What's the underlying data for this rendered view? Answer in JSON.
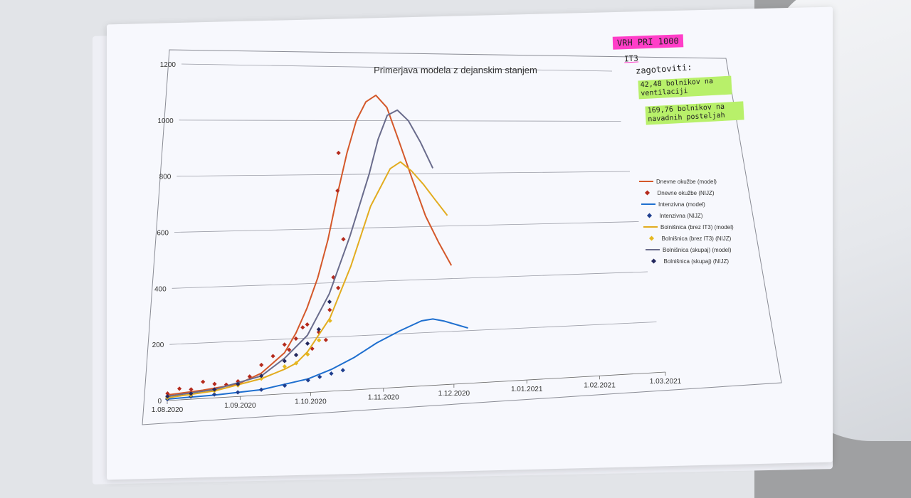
{
  "chart_data": {
    "type": "line",
    "title": "Primerjava modela z dejanskim stanjem",
    "xlabel": "",
    "ylabel": "",
    "ylim": [
      0,
      1200
    ],
    "y_ticks": [
      "0",
      "200",
      "400",
      "600",
      "800",
      "1000",
      "1200"
    ],
    "x_tick_labels": [
      "1.08.2020",
      "1.09.2020",
      "1.10.2020",
      "1.11.2020",
      "1.12.2020",
      "1.01.2021",
      "1.02.2021",
      "1.03.2021"
    ],
    "x_tick_days": [
      0,
      31,
      61,
      92,
      122,
      153,
      184,
      212
    ],
    "grid": true,
    "legend_position": "right",
    "series": [
      {
        "name": "Dnevne okužbe (model)",
        "kind": "line",
        "color": "#d4582a",
        "x_days": [
          0,
          15,
          30,
          40,
          50,
          55,
          60,
          65,
          70,
          75,
          80,
          85,
          90,
          95,
          100,
          105,
          110,
          115,
          120,
          125
        ],
        "y": [
          20,
          30,
          45,
          80,
          150,
          220,
          310,
          420,
          560,
          730,
          880,
          1000,
          1070,
          1095,
          1050,
          920,
          780,
          640,
          540,
          450
        ]
      },
      {
        "name": "Dnevne okužbe (NIJZ)",
        "kind": "scatter",
        "color": "#b52a1c",
        "x_days": [
          0,
          5,
          10,
          15,
          20,
          25,
          30,
          35,
          40,
          45,
          50,
          52,
          55,
          58,
          60,
          62,
          65,
          68,
          70,
          72,
          74,
          75,
          76,
          77
        ],
        "y": [
          25,
          40,
          35,
          60,
          50,
          45,
          55,
          70,
          110,
          140,
          180,
          160,
          200,
          240,
          250,
          160,
          220,
          190,
          300,
          420,
          380,
          740,
          880,
          560
        ]
      },
      {
        "name": "Intenzivna (model)",
        "kind": "line",
        "color": "#1e6fcf",
        "x_days": [
          0,
          20,
          40,
          60,
          70,
          80,
          90,
          100,
          110,
          115,
          120,
          125,
          130
        ],
        "y": [
          5,
          10,
          20,
          50,
          80,
          120,
          170,
          210,
          245,
          250,
          240,
          225,
          210
        ]
      },
      {
        "name": "Intenzivna (NIJZ)",
        "kind": "scatter",
        "color": "#1f3f8f",
        "x_days": [
          0,
          10,
          20,
          30,
          40,
          50,
          60,
          65,
          70,
          75
        ],
        "y": [
          5,
          10,
          12,
          15,
          20,
          30,
          45,
          55,
          65,
          75
        ]
      },
      {
        "name": "Bolnišnica (brez IT3) (model)",
        "kind": "line",
        "color": "#e2ac1f",
        "x_days": [
          0,
          20,
          40,
          50,
          55,
          60,
          70,
          80,
          90,
          100,
          105,
          110,
          115,
          120,
          125
        ],
        "y": [
          10,
          25,
          60,
          90,
          110,
          150,
          270,
          460,
          680,
          820,
          845,
          810,
          760,
          700,
          640
        ]
      },
      {
        "name": "Bolnišnica (brez IT3) (NIJZ)",
        "kind": "scatter",
        "color": "#e6b820",
        "x_days": [
          0,
          10,
          20,
          30,
          40,
          50,
          55,
          60,
          65,
          70
        ],
        "y": [
          10,
          15,
          25,
          40,
          60,
          100,
          110,
          140,
          190,
          260
        ]
      },
      {
        "name": "Bolnišnica (skupaj) (model)",
        "kind": "line",
        "color": "#6a6c8c",
        "x_days": [
          0,
          20,
          40,
          50,
          60,
          70,
          80,
          90,
          95,
          100,
          105,
          110,
          115,
          120
        ],
        "y": [
          15,
          30,
          70,
          130,
          210,
          360,
          570,
          800,
          930,
          1020,
          1040,
          1000,
          920,
          820
        ]
      },
      {
        "name": "Bolnišnica (skupaj) (NIJZ)",
        "kind": "scatter",
        "color": "#23285e",
        "x_days": [
          0,
          10,
          20,
          30,
          40,
          50,
          55,
          60,
          65,
          70
        ],
        "y": [
          15,
          20,
          30,
          45,
          70,
          120,
          140,
          180,
          230,
          330
        ]
      }
    ]
  },
  "handwritten_notes": {
    "note1": "VRH PRI 1000",
    "note2": "IT3",
    "note3": "zagotoviti:",
    "note4": "42,48 bolnikov na ventilaciji",
    "note5": "169,76 bolnikov na navadnih posteljah"
  }
}
